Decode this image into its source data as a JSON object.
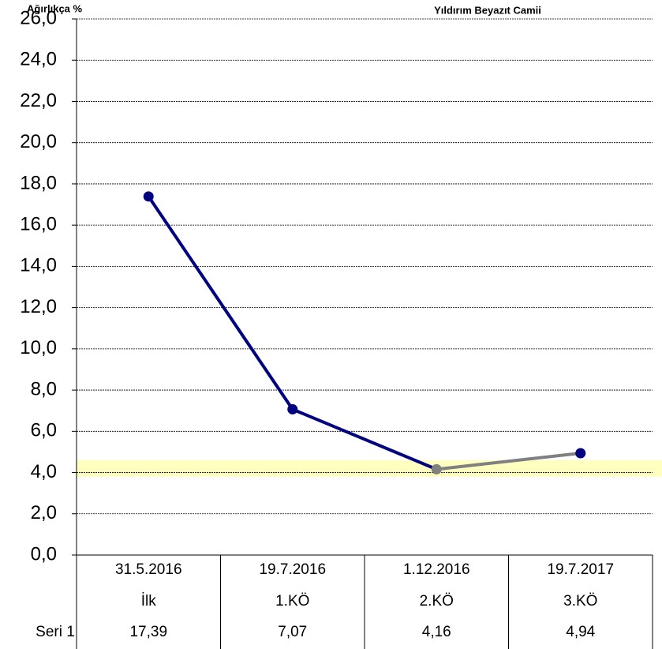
{
  "chart_data": {
    "type": "line",
    "title": "Yıldırım  Beyazıt Camii",
    "y_label": "Ağırlıkça %",
    "categories": [
      "31.5.2016",
      "19.7.2016",
      "1.12.2016",
      "19.7.2017"
    ],
    "category_sublabels": [
      "İlk",
      "1.KÖ",
      "2.KÖ",
      "3.KÖ"
    ],
    "series": [
      {
        "name": "Seri 1",
        "color": "#000080",
        "values": [
          17.39,
          7.07,
          4.16,
          4.94
        ],
        "value_labels": [
          "17,39",
          "7,07",
          "4,16",
          "4,94"
        ],
        "point_colors": [
          "#000080",
          "#000080",
          "#808080",
          "#000080"
        ]
      }
    ],
    "ylim": [
      0,
      26
    ],
    "yticks": [
      {
        "value": 0,
        "label": "0,0"
      },
      {
        "value": 2,
        "label": "2,0"
      },
      {
        "value": 4,
        "label": "4,0"
      },
      {
        "value": 6,
        "label": "6,0"
      },
      {
        "value": 8,
        "label": "8,0"
      },
      {
        "value": 10,
        "label": "10,0"
      },
      {
        "value": 12,
        "label": "12,0"
      },
      {
        "value": 14,
        "label": "14,0"
      },
      {
        "value": 16,
        "label": "16,0"
      },
      {
        "value": 18,
        "label": "18,0"
      },
      {
        "value": 20,
        "label": "20,0"
      },
      {
        "value": 22,
        "label": "22,0"
      },
      {
        "value": 24,
        "label": "24,0"
      },
      {
        "value": 26,
        "label": "26,0"
      }
    ],
    "grid": true,
    "highlight_band": {
      "from": 3.8,
      "to": 4.6,
      "color": "#ffffc0"
    }
  }
}
